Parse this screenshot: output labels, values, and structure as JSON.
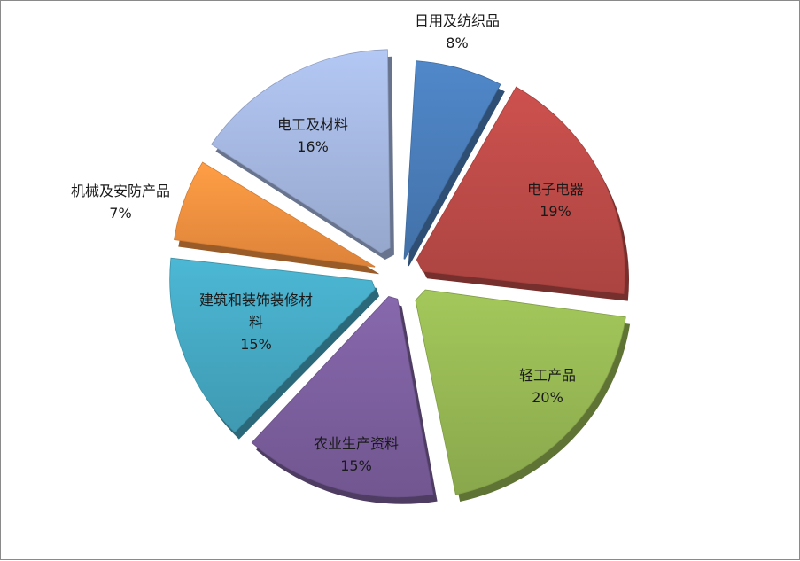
{
  "chart_data": {
    "type": "pie",
    "title": "",
    "slices": [
      {
        "label": "日用及纺织品",
        "value": 8,
        "pct_label": "8%",
        "color": "#4A7EBB"
      },
      {
        "label": "电子电器",
        "value": 19,
        "pct_label": "19%",
        "color": "#BE4B48"
      },
      {
        "label": "轻工产品",
        "value": 20,
        "pct_label": "20%",
        "color": "#98B954"
      },
      {
        "label": "农业生产资料",
        "value": 15,
        "pct_label": "15%",
        "color": "#7D60A0"
      },
      {
        "label": "建筑和装饰装修材料",
        "label_lines": [
          "建筑和装饰装修材",
          "料"
        ],
        "value": 15,
        "pct_label": "15%",
        "color": "#46AAC5"
      },
      {
        "label": "机械及安防产品",
        "value": 7,
        "pct_label": "7%",
        "color": "#F69240"
      },
      {
        "label": "电工及材料",
        "value": 16,
        "pct_label": "16%",
        "color": "#A7B9E3"
      }
    ],
    "legend": "none",
    "exploded": true,
    "style": "3d"
  }
}
